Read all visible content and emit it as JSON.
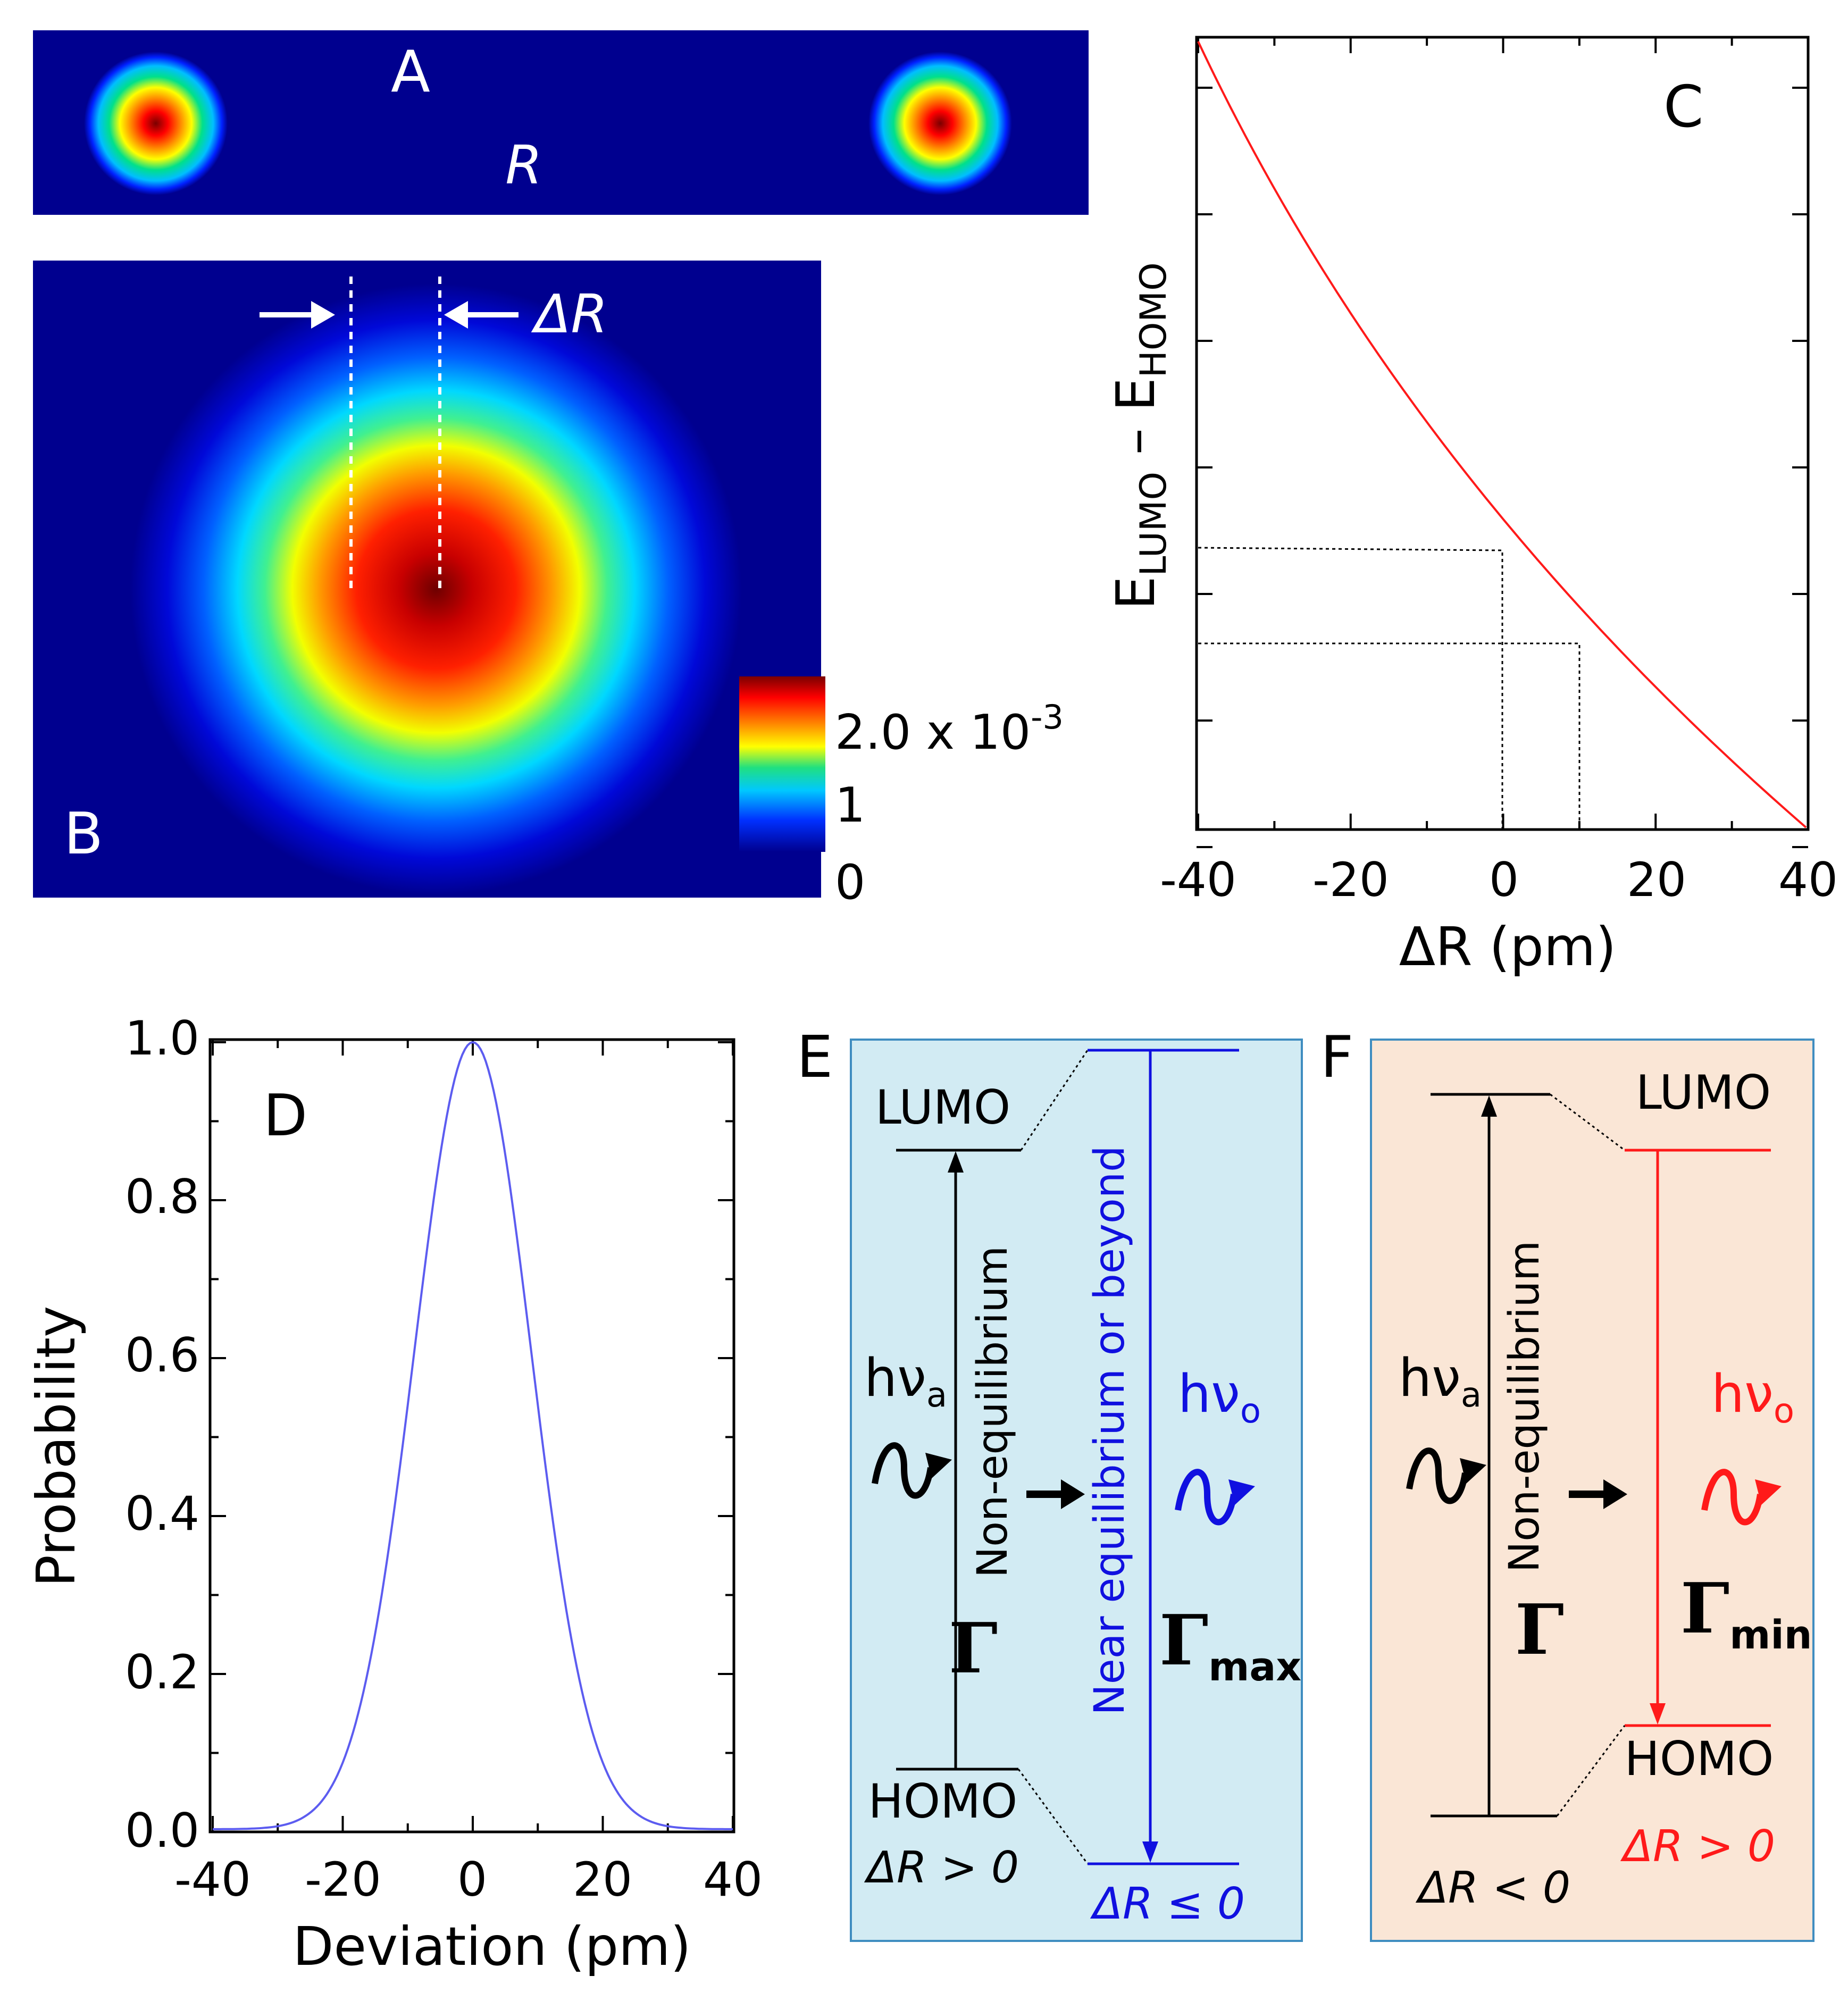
{
  "panelA": {
    "label": "A",
    "r_label": "R"
  },
  "panelB": {
    "label": "B",
    "delta_r_label": "ΔR",
    "colorbar": {
      "top_label_base": "2.0 x 10",
      "top_label_exp": "-3",
      "mid_label": "1",
      "bottom_label": "0"
    }
  },
  "panelC": {
    "label": "C",
    "ylabel_base_1": "E",
    "ylabel_sub_1": "LUMO",
    "ylabel_dash": " – ",
    "ylabel_base_2": "E",
    "ylabel_sub_2": "HOMO",
    "xlabel": "ΔR (pm)",
    "xticks": [
      "-40",
      "-20",
      "0",
      "20",
      "40"
    ]
  },
  "panelD": {
    "label": "D",
    "xlabel": "Deviation (pm)",
    "ylabel": "Probability",
    "xticks": [
      "-40",
      "-20",
      "0",
      "20",
      "40"
    ],
    "yticks": [
      "0.0",
      "0.2",
      "0.4",
      "0.6",
      "0.8",
      "1.0"
    ]
  },
  "panelE": {
    "label": "E",
    "lumo": "LUMO",
    "homo": "HOMO",
    "noneq": "Non-equilibrium",
    "neareq": "Near equilibrium or beyond",
    "hva_base": "hν",
    "hva_sub": "a",
    "hvo_base": "hν",
    "hvo_sub": "o",
    "gamma": "Γ",
    "gamma_max": "Γ",
    "gamma_max_sub": "max",
    "dr_left": "ΔR > 0",
    "dr_right": "ΔR ≤ 0"
  },
  "panelF": {
    "label": "F",
    "lumo": "LUMO",
    "homo": "HOMO",
    "noneq": "Non-equilibrium",
    "hva_base": "hν",
    "hva_sub": "a",
    "hvo_base": "hν",
    "hvo_sub": "o",
    "gamma": "Γ",
    "gamma_min": "Γ",
    "gamma_min_sub": "min",
    "dr_left": "ΔR < 0",
    "dr_right": "ΔR > 0"
  },
  "colors": {
    "dark_blue": "#00008f",
    "blue": "#1010e0",
    "red": "#ff1a1a",
    "panel_e_bg": "#d2ebf3",
    "panel_f_bg": "#fae6d6",
    "frame_blue": "#3f8dc0"
  }
}
